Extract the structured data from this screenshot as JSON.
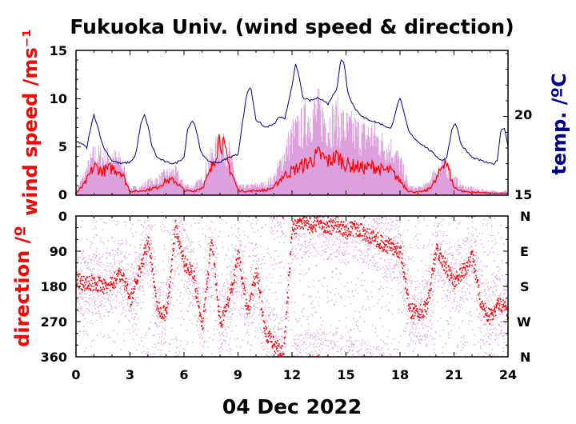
{
  "chart_data": [
    {
      "type": "line",
      "title": "Fukuoka Univ. (wind speed & direction)",
      "ylabel": "wind speed /ms⁻¹",
      "y2label": "temp. /ºC",
      "xlim": [
        0,
        24
      ],
      "ylim": [
        0,
        15
      ],
      "y2lim": [
        15,
        24.2
      ],
      "yticks": [
        0,
        5,
        10,
        15
      ],
      "y2ticks": [
        15,
        20
      ],
      "grid": false,
      "colors": {
        "wind_mean": "#ff0000",
        "wind_gust": "#dda0dd",
        "temperature": "#00008b"
      },
      "series": [
        {
          "key": "temperature",
          "axis": "right",
          "x": [
            0,
            0.3,
            0.6,
            0.8,
            1.0,
            1.2,
            1.5,
            2,
            2.5,
            3,
            3.3,
            3.6,
            3.8,
            4.0,
            4.2,
            4.5,
            5,
            5.5,
            6,
            6.2,
            6.5,
            6.7,
            6.9,
            7.2,
            7.5,
            8,
            8.5,
            9,
            9.3,
            9.5,
            9.7,
            10,
            10.5,
            11,
            11.3,
            11.6,
            12,
            12.2,
            12.4,
            12.6,
            13,
            13.5,
            14,
            14.5,
            14.7,
            14.9,
            15.1,
            15.5,
            16,
            16.5,
            17,
            17.5,
            17.8,
            18.0,
            18.2,
            18.5,
            19,
            19.5,
            20,
            20.3,
            20.6,
            20.9,
            21.1,
            21.4,
            22,
            22.5,
            23,
            23.2,
            23.4,
            23.6,
            23.8,
            24
          ],
          "y": [
            18.4,
            18.3,
            18.0,
            19.2,
            20.1,
            19.4,
            18.1,
            17.2,
            17.0,
            17.1,
            17.5,
            19.5,
            20.1,
            19.4,
            18.2,
            17.4,
            17.1,
            17.0,
            17.4,
            19.2,
            19.8,
            19.0,
            17.9,
            17.3,
            17.1,
            17.1,
            17.4,
            17.6,
            20.0,
            21.5,
            21.9,
            19.8,
            19.3,
            19.5,
            20.0,
            19.8,
            22.0,
            23.3,
            22.5,
            21.2,
            21.0,
            21.2,
            20.8,
            21.8,
            23.6,
            23.4,
            21.5,
            20.5,
            19.9,
            19.7,
            19.5,
            19.2,
            20.5,
            21.2,
            20.3,
            19.0,
            18.4,
            18.0,
            17.5,
            17.2,
            17.4,
            19.3,
            19.6,
            18.2,
            17.4,
            17.2,
            17.0,
            17.0,
            17.2,
            19.1,
            19.3,
            18.1
          ]
        },
        {
          "key": "wind_gust",
          "axis": "left",
          "x": [
            0,
            0.5,
            1,
            1.5,
            2,
            2.5,
            3,
            3.5,
            4,
            4.5,
            5,
            5.5,
            6,
            6.5,
            7,
            7.5,
            8,
            8.5,
            9,
            9.5,
            10,
            10.5,
            11,
            11.5,
            12,
            12.5,
            13,
            13.5,
            14,
            14.5,
            15,
            15.5,
            16,
            16.5,
            17,
            17.5,
            18,
            18.5,
            19,
            19.5,
            20,
            20.5,
            21,
            21.5,
            22,
            22.5,
            23,
            23.5,
            24
          ],
          "y": [
            0.5,
            2.5,
            4.8,
            4.5,
            4.4,
            4.0,
            0.8,
            0.9,
            1.5,
            1.8,
            2.5,
            2.8,
            1.2,
            1.0,
            1.8,
            4.5,
            6.0,
            5.0,
            1.0,
            1.0,
            1.2,
            1.3,
            2.0,
            4.5,
            7.0,
            8.0,
            9.5,
            9.8,
            8.5,
            9.0,
            8.0,
            7.5,
            7.0,
            7.2,
            6.0,
            5.5,
            4.0,
            1.0,
            0.8,
            1.2,
            3.0,
            3.5,
            2.0,
            1.0,
            0.8,
            0.6,
            0.5,
            0.4,
            0.5
          ]
        },
        {
          "key": "wind_mean",
          "axis": "left",
          "x": [
            0,
            0.5,
            1,
            1.5,
            2,
            2.5,
            3,
            3.5,
            4,
            4.5,
            5,
            5.5,
            6,
            6.5,
            7,
            7.5,
            8,
            8.5,
            9,
            9.5,
            10,
            10.5,
            11,
            11.5,
            12,
            12.5,
            13,
            13.5,
            14,
            14.5,
            15,
            15.5,
            16,
            16.5,
            17,
            17.5,
            18,
            18.5,
            19,
            19.5,
            20,
            20.5,
            21,
            21.5,
            22,
            22.5,
            23,
            23.5,
            24
          ],
          "y": [
            0.2,
            1.2,
            3.0,
            2.5,
            2.8,
            2.5,
            0.4,
            0.4,
            0.6,
            0.8,
            1.5,
            1.5,
            0.5,
            0.4,
            0.8,
            2.5,
            6.2,
            3.0,
            0.5,
            0.4,
            0.5,
            0.5,
            0.8,
            2.0,
            2.5,
            3.0,
            3.5,
            4.2,
            3.5,
            4.0,
            3.2,
            3.0,
            2.8,
            3.0,
            2.6,
            2.5,
            1.5,
            0.4,
            0.3,
            0.5,
            1.5,
            3.8,
            0.8,
            0.4,
            0.3,
            0.3,
            0.2,
            0.2,
            0.2
          ]
        }
      ]
    },
    {
      "type": "scatter",
      "ylabel": "direction /º",
      "xlabel": "04 Dec 2022",
      "xlim": [
        0,
        24
      ],
      "ylim": [
        360,
        0
      ],
      "xticks": [
        0,
        3,
        6,
        9,
        12,
        15,
        18,
        21,
        24
      ],
      "yticks": [
        0,
        90,
        180,
        270,
        360
      ],
      "y2ticks": [
        "N",
        "E",
        "S",
        "W",
        "N"
      ],
      "grid": false,
      "colors": {
        "direction_mean": "#ff0000",
        "direction_gust": "#dda0dd"
      },
      "series": [
        {
          "key": "direction_mean",
          "x": [
            0,
            0.5,
            1,
            1.5,
            2,
            2.5,
            3,
            3.5,
            4,
            4.5,
            5,
            5.5,
            6,
            6.5,
            7,
            7.5,
            8,
            8.5,
            9,
            9.5,
            10,
            10.5,
            11,
            11.5,
            12,
            12.5,
            13,
            13.5,
            14,
            14.5,
            15,
            15.5,
            16,
            16.5,
            17,
            17.5,
            18,
            18.5,
            19,
            19.5,
            20,
            20.5,
            21,
            21.5,
            22,
            22.5,
            23,
            23.5,
            24
          ],
          "y": [
            160,
            175,
            170,
            180,
            170,
            145,
            215,
            140,
            60,
            240,
            250,
            30,
            120,
            150,
            290,
            60,
            280,
            210,
            100,
            250,
            140,
            300,
            330,
            350,
            30,
            20,
            25,
            15,
            30,
            20,
            40,
            30,
            45,
            55,
            70,
            80,
            90,
            240,
            250,
            230,
            80,
            130,
            170,
            140,
            105,
            230,
            260,
            220,
            250
          ]
        }
      ]
    }
  ],
  "ui": {
    "title": "Fukuoka Univ. (wind speed & direction)",
    "top_ylabel": "wind speed /ms⁻¹",
    "top_y2label": "temp. /ºC",
    "bottom_ylabel": "direction /º",
    "xlabel": "04 Dec 2022",
    "top_yticks": [
      "0",
      "5",
      "10",
      "15"
    ],
    "top_y2ticks": [
      "15",
      "20"
    ],
    "bottom_yticks": [
      "0",
      "90",
      "180",
      "270",
      "360"
    ],
    "bottom_y2ticks": [
      "N",
      "E",
      "S",
      "W",
      "N"
    ],
    "xticks": [
      "0",
      "3",
      "6",
      "9",
      "12",
      "15",
      "18",
      "21",
      "24"
    ]
  }
}
